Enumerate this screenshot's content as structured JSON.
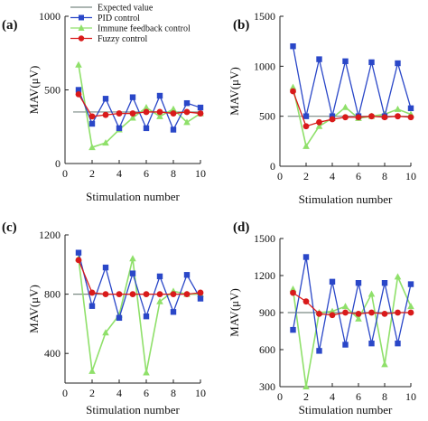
{
  "chart_data": [
    {
      "type": "line",
      "panel_label": "(a)",
      "xlabel": "Stimulation number",
      "ylabel": "MAV(μV)",
      "ylim": [
        0,
        1000
      ],
      "yticks": [
        "0",
        "500",
        "1000"
      ],
      "ytick_values": [
        0,
        500,
        1000
      ],
      "xticks": [
        "0",
        "2",
        "4",
        "6",
        "8",
        "10"
      ],
      "xtick_values": [
        0,
        2,
        4,
        6,
        8,
        10
      ],
      "x": [
        1,
        2,
        3,
        4,
        5,
        6,
        7,
        8,
        9,
        10
      ],
      "legend": true,
      "legend_position": "top",
      "series": [
        {
          "name": "Expected value",
          "kind": "expected",
          "y": [
            350,
            350,
            350,
            350,
            350,
            350,
            350,
            350,
            350,
            350
          ]
        },
        {
          "name": "PID control",
          "kind": "pid",
          "y": [
            500,
            270,
            440,
            240,
            450,
            240,
            460,
            230,
            410,
            380
          ]
        },
        {
          "name": "Immune feedback control",
          "kind": "immune",
          "y": [
            670,
            110,
            140,
            230,
            310,
            380,
            320,
            370,
            280,
            340
          ]
        },
        {
          "name": "Fuzzy control",
          "kind": "fuzzy",
          "y": [
            470,
            320,
            330,
            340,
            340,
            350,
            350,
            340,
            350,
            340
          ]
        }
      ]
    },
    {
      "type": "line",
      "panel_label": "(b)",
      "xlabel": "Stimulation number",
      "ylabel": "MAV(μV)",
      "ylim": [
        0,
        1500
      ],
      "yticks": [
        "0",
        "500",
        "1000",
        "1500"
      ],
      "ytick_values": [
        0,
        500,
        1000,
        1500
      ],
      "xticks": [
        "0",
        "2",
        "4",
        "6",
        "8",
        "10"
      ],
      "xtick_values": [
        0,
        2,
        4,
        6,
        8,
        10
      ],
      "x": [
        1,
        2,
        3,
        4,
        5,
        6,
        7,
        8,
        9,
        10
      ],
      "legend": false,
      "series": [
        {
          "name": "",
          "kind": "expected",
          "y": [
            500,
            500,
            500,
            500,
            500,
            500,
            500,
            500,
            500,
            500
          ]
        },
        {
          "name": "",
          "kind": "pid",
          "y": [
            1200,
            500,
            1070,
            500,
            1050,
            500,
            1040,
            500,
            1030,
            580
          ]
        },
        {
          "name": "",
          "kind": "immune",
          "y": [
            790,
            200,
            400,
            480,
            590,
            480,
            500,
            520,
            570,
            520
          ]
        },
        {
          "name": "",
          "kind": "fuzzy",
          "y": [
            750,
            400,
            440,
            470,
            490,
            490,
            500,
            490,
            500,
            490
          ]
        }
      ]
    },
    {
      "type": "line",
      "panel_label": "(c)",
      "xlabel": "Stimulation number",
      "ylabel": "MAV(μV)",
      "ylim": [
        200,
        1200
      ],
      "yticks": [
        "400",
        "800",
        "1200"
      ],
      "ytick_values": [
        400,
        800,
        1200
      ],
      "xticks": [
        "0",
        "2",
        "4",
        "6",
        "8",
        "10"
      ],
      "xtick_values": [
        0,
        2,
        4,
        6,
        8,
        10
      ],
      "x": [
        1,
        2,
        3,
        4,
        5,
        6,
        7,
        8,
        9,
        10
      ],
      "legend": false,
      "series": [
        {
          "name": "",
          "kind": "expected",
          "y": [
            800,
            800,
            800,
            800,
            800,
            800,
            800,
            800,
            800,
            800
          ]
        },
        {
          "name": "",
          "kind": "pid",
          "y": [
            1080,
            720,
            980,
            640,
            940,
            650,
            920,
            680,
            930,
            770
          ]
        },
        {
          "name": "",
          "kind": "immune",
          "y": [
            1040,
            280,
            540,
            660,
            1040,
            270,
            750,
            820,
            800,
            800
          ]
        },
        {
          "name": "",
          "kind": "fuzzy",
          "y": [
            1030,
            810,
            800,
            800,
            800,
            800,
            800,
            800,
            800,
            810
          ]
        }
      ]
    },
    {
      "type": "line",
      "panel_label": "(d)",
      "xlabel": "Stimulation number",
      "ylabel": "MAV(μV)",
      "ylim": [
        300,
        1500
      ],
      "yticks": [
        "300",
        "600",
        "900",
        "1200",
        "1500"
      ],
      "ytick_values": [
        300,
        600,
        900,
        1200,
        1500
      ],
      "xticks": [
        "0",
        "2",
        "4",
        "6",
        "8",
        "10"
      ],
      "xtick_values": [
        0,
        2,
        4,
        6,
        8,
        10
      ],
      "x": [
        1,
        2,
        3,
        4,
        5,
        6,
        7,
        8,
        9,
        10
      ],
      "legend": false,
      "series": [
        {
          "name": "",
          "kind": "expected",
          "y": [
            900,
            900,
            900,
            900,
            900,
            900,
            900,
            900,
            900,
            900
          ]
        },
        {
          "name": "",
          "kind": "pid",
          "y": [
            760,
            1350,
            590,
            1150,
            640,
            1140,
            650,
            1140,
            650,
            1130
          ]
        },
        {
          "name": "",
          "kind": "immune",
          "y": [
            1090,
            300,
            900,
            910,
            950,
            850,
            1050,
            480,
            1190,
            950
          ]
        },
        {
          "name": "",
          "kind": "fuzzy",
          "y": [
            1060,
            990,
            890,
            880,
            900,
            890,
            900,
            890,
            900,
            900
          ]
        }
      ]
    }
  ],
  "colors": {
    "expected": "#7a8a84",
    "pid": "#2a47c8",
    "immune": "#8fe06a",
    "fuzzy": "#d91a1a",
    "axis": "#222222"
  }
}
